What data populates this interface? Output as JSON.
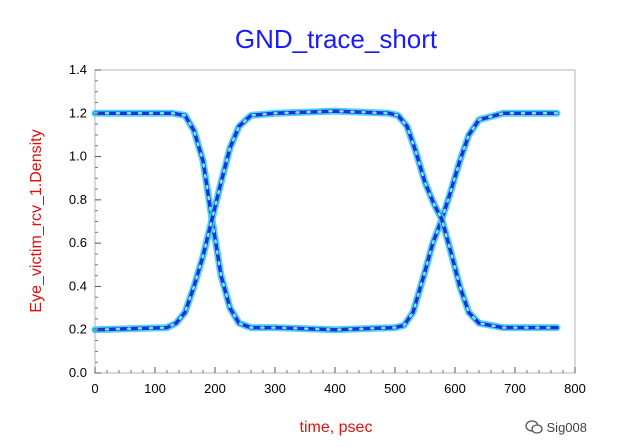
{
  "chart_data": {
    "type": "eye-diagram",
    "title": "GND_trace_short",
    "xlabel": "time, psec",
    "ylabel": "Eye_victim_rcv_1.Density",
    "xlim": [
      0,
      800
    ],
    "ylim": [
      0,
      1.4
    ],
    "xticks": [
      "0",
      "100",
      "200",
      "300",
      "400",
      "500",
      "600",
      "700",
      "800"
    ],
    "yticks": [
      "0.0",
      "0.2",
      "0.4",
      "0.6",
      "0.8",
      "1.0",
      "1.2",
      "1.4"
    ],
    "high_level": 1.2,
    "low_level": 0.2,
    "crossing_level": 0.71,
    "crossings": [
      {
        "x": 195,
        "y": 0.71
      },
      {
        "x": 578,
        "y": 0.71
      }
    ],
    "series": [
      {
        "x": [
          0,
          130,
          150,
          165,
          180,
          195,
          210,
          225,
          240,
          260,
          300,
          400,
          500,
          515,
          530,
          548,
          563,
          578,
          593,
          608,
          623,
          640,
          680,
          770
        ],
        "y": [
          1.2,
          1.2,
          1.19,
          1.12,
          0.98,
          0.71,
          0.45,
          0.3,
          0.23,
          0.21,
          0.21,
          0.2,
          0.21,
          0.22,
          0.28,
          0.45,
          0.6,
          0.71,
          0.84,
          0.98,
          1.1,
          1.17,
          1.2,
          1.2
        ]
      },
      {
        "x": [
          0,
          120,
          135,
          150,
          165,
          180,
          195,
          210,
          225,
          240,
          260,
          300,
          400,
          490,
          505,
          520,
          535,
          550,
          565,
          578,
          593,
          608,
          623,
          640,
          680,
          770
        ],
        "y": [
          0.2,
          0.21,
          0.23,
          0.28,
          0.4,
          0.54,
          0.71,
          0.88,
          1.04,
          1.14,
          1.19,
          1.2,
          1.21,
          1.2,
          1.19,
          1.14,
          1.02,
          0.88,
          0.78,
          0.71,
          0.56,
          0.4,
          0.28,
          0.23,
          0.21,
          0.21
        ]
      }
    ],
    "colors": {
      "core": "#1f2fe0",
      "halo": "#3ad0f0",
      "dot": "#7de8f5"
    },
    "grid": false
  },
  "watermark": {
    "text": "Sig008",
    "icon": "wechat-icon"
  }
}
